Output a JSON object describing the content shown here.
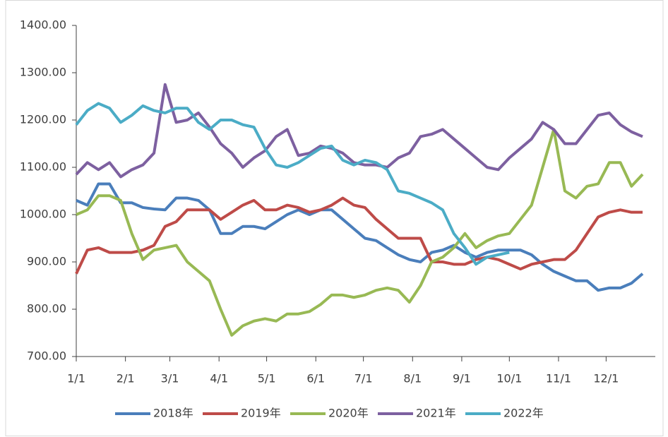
{
  "chart_data": {
    "type": "line",
    "x": [
      0,
      7,
      14,
      21,
      28,
      35,
      42,
      49,
      56,
      63,
      70,
      77,
      84,
      91,
      98,
      105,
      112,
      119,
      126,
      133,
      140,
      147,
      154,
      161,
      168,
      175,
      182,
      189,
      196,
      203,
      210,
      217,
      224,
      231,
      238,
      245,
      252,
      259,
      266,
      273,
      280,
      287,
      294,
      301,
      308,
      315,
      322,
      329,
      336,
      343,
      350,
      357
    ],
    "xlim": [
      0,
      365
    ],
    "xticks": [
      {
        "value": 0,
        "label": "1/1"
      },
      {
        "value": 31,
        "label": "2/1"
      },
      {
        "value": 59,
        "label": "3/1"
      },
      {
        "value": 90,
        "label": "4/1"
      },
      {
        "value": 120,
        "label": "5/1"
      },
      {
        "value": 151,
        "label": "6/1"
      },
      {
        "value": 181,
        "label": "7/1"
      },
      {
        "value": 212,
        "label": "8/1"
      },
      {
        "value": 243,
        "label": "9/1"
      },
      {
        "value": 273,
        "label": "10/1"
      },
      {
        "value": 304,
        "label": "11/1"
      },
      {
        "value": 334,
        "label": "12/1"
      }
    ],
    "ylim": [
      700,
      1400
    ],
    "yticks": [
      {
        "value": 700,
        "label": "700.00"
      },
      {
        "value": 800,
        "label": "800.00"
      },
      {
        "value": 900,
        "label": "900.00"
      },
      {
        "value": 1000,
        "label": "1000.00"
      },
      {
        "value": 1100,
        "label": "1100.00"
      },
      {
        "value": 1200,
        "label": "1200.00"
      },
      {
        "value": 1300,
        "label": "1300.00"
      },
      {
        "value": 1400,
        "label": "1400.00"
      }
    ],
    "grid": false,
    "legend": "bottom",
    "series": [
      {
        "name": "2018年",
        "color": "#4a7ebb",
        "values": [
          1030,
          1020,
          1065,
          1065,
          1025,
          1025,
          1015,
          1012,
          1010,
          1035,
          1035,
          1030,
          1010,
          960,
          960,
          975,
          975,
          970,
          985,
          1000,
          1010,
          1000,
          1010,
          1010,
          990,
          970,
          950,
          945,
          930,
          915,
          905,
          900,
          920,
          925,
          935,
          920,
          910,
          920,
          925,
          925,
          925,
          915,
          895,
          880,
          870,
          860,
          860,
          840,
          845,
          845,
          855,
          875
        ]
      },
      {
        "name": "2019年",
        "color": "#be4b48",
        "values": [
          875,
          925,
          930,
          920,
          920,
          920,
          925,
          935,
          975,
          985,
          1010,
          1010,
          1010,
          990,
          1005,
          1020,
          1030,
          1010,
          1010,
          1020,
          1015,
          1005,
          1010,
          1020,
          1035,
          1020,
          1015,
          990,
          970,
          950,
          950,
          950,
          900,
          900,
          895,
          895,
          905,
          910,
          905,
          895,
          885,
          895,
          900,
          905,
          905,
          925,
          960,
          995,
          1005,
          1010,
          1005,
          1005
        ]
      },
      {
        "name": "2020年",
        "color": "#98b954",
        "values": [
          1000,
          1010,
          1040,
          1040,
          1030,
          960,
          905,
          925,
          930,
          935,
          900,
          880,
          860,
          800,
          745,
          765,
          775,
          780,
          775,
          790,
          790,
          795,
          810,
          830,
          830,
          825,
          830,
          840,
          845,
          840,
          815,
          850,
          900,
          910,
          930,
          960,
          930,
          945,
          955,
          960,
          990,
          1020,
          1100,
          1180,
          1050,
          1035,
          1060,
          1065,
          1110,
          1110,
          1060,
          1085
        ]
      },
      {
        "name": "2021年",
        "color": "#7d60a0",
        "values": [
          1085,
          1110,
          1095,
          1110,
          1080,
          1095,
          1105,
          1130,
          1275,
          1195,
          1200,
          1215,
          1185,
          1150,
          1130,
          1100,
          1120,
          1135,
          1165,
          1180,
          1125,
          1130,
          1145,
          1140,
          1130,
          1110,
          1105,
          1105,
          1100,
          1120,
          1130,
          1165,
          1170,
          1180,
          1160,
          1140,
          1120,
          1100,
          1095,
          1120,
          1140,
          1160,
          1195,
          1180,
          1150,
          1150,
          1180,
          1210,
          1215,
          1190,
          1175,
          1165
        ]
      },
      {
        "name": "2022年",
        "color": "#4bacc6",
        "values": [
          1190,
          1220,
          1235,
          1225,
          1195,
          1210,
          1230,
          1220,
          1215,
          1225,
          1225,
          1195,
          1180,
          1200,
          1200,
          1190,
          1185,
          1140,
          1105,
          1100,
          1110,
          1125,
          1140,
          1145,
          1115,
          1105,
          1115,
          1110,
          1095,
          1050,
          1045,
          1035,
          1025,
          1010,
          960,
          930,
          895,
          910,
          915,
          920,
          null,
          null,
          null,
          null,
          null,
          null,
          null,
          null,
          null,
          null,
          null,
          null
        ]
      }
    ]
  }
}
